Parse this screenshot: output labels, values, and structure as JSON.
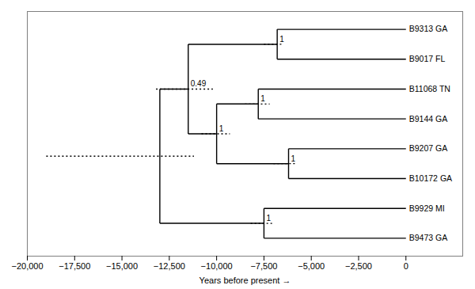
{
  "chart_data": {
    "type": "tree",
    "xlabel": "Years before present",
    "xlim": [
      -20000,
      3000
    ],
    "xticks": [
      {
        "value": -20000,
        "label": "−20,000"
      },
      {
        "value": -17500,
        "label": "−17,500"
      },
      {
        "value": -15000,
        "label": "−15,000"
      },
      {
        "value": -12500,
        "label": "−12,500"
      },
      {
        "value": -10000,
        "label": "−10,000"
      },
      {
        "value": -7500,
        "label": "−7,500"
      },
      {
        "value": -5000,
        "label": "−5,000"
      },
      {
        "value": -2500,
        "label": "−2,500"
      },
      0
    ],
    "color": "#000000",
    "categories": [
      "B9313 GA",
      "B9017 FL",
      "B11068 TN",
      "B9144 GA",
      "B9207 GA",
      "B10172 GA",
      "B9929 MI",
      "B9473 GA"
    ],
    "tree": {
      "x": -13000,
      "ci": [
        -19000,
        -11200
      ],
      "children": [
        {
          "x": -11500,
          "posterior": 0.49,
          "ci": [
            -13200,
            -10200
          ],
          "children": [
            {
              "x": -6800,
              "posterior": 1,
              "ci": [
                -7500,
                -6500
              ],
              "children": [
                {
                  "name": "B9313 GA",
                  "x": 0
                },
                {
                  "name": "B9017 FL",
                  "x": 0
                }
              ]
            },
            {
              "x": -10000,
              "posterior": 1,
              "ci": [
                -10800,
                -9300
              ],
              "children": [
                {
                  "x": -7800,
                  "posterior": 1,
                  "ci": [
                    -8500,
                    -7200
                  ],
                  "children": [
                    {
                      "name": "B11068 TN",
                      "x": 0
                    },
                    {
                      "name": "B9144 GA",
                      "x": 0
                    }
                  ]
                },
                {
                  "x": -6200,
                  "posterior": 1,
                  "ci": [
                    -7000,
                    -5800
                  ],
                  "children": [
                    {
                      "name": "B9207 GA",
                      "x": 0
                    },
                    {
                      "name": "B10172 GA",
                      "x": 0
                    }
                  ]
                }
              ]
            }
          ]
        },
        {
          "x": -7500,
          "posterior": 1,
          "ci": [
            -8200,
            -7000
          ],
          "children": [
            {
              "name": "B9929 MI",
              "x": 0
            },
            {
              "name": "B9473 GA",
              "x": 0
            }
          ]
        }
      ]
    }
  }
}
